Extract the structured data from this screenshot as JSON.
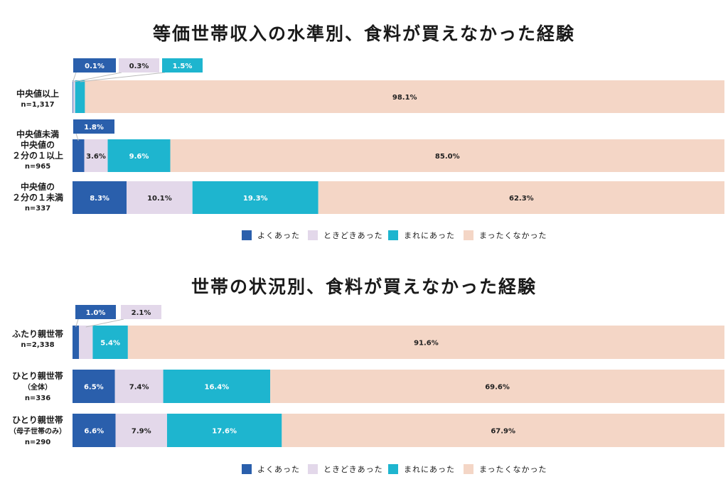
{
  "colors": {
    "often": "#2a5fac",
    "sometimes": "#e3d8ea",
    "rarely": "#1eb5cf",
    "never": "#f4d6c6"
  },
  "legend": [
    "よくあった",
    "ときどきあった",
    "まれにあった",
    "まったくなかった"
  ],
  "chart_data": [
    {
      "type": "bar",
      "orientation": "horizontal-stacked-100",
      "title": "等価世帯収入の水準別、食料が買えなかった経験",
      "series_names": [
        "よくあった",
        "ときどきあった",
        "まれにあった",
        "まったくなかった"
      ],
      "rows": [
        {
          "label": [
            "中央値以上"
          ],
          "n": "n=1,317",
          "values": [
            0.1,
            0.3,
            1.5,
            98.1
          ],
          "labels": [
            "0.1%",
            "0.3%",
            "1.5%",
            "98.1%"
          ]
        },
        {
          "label": [
            "中央値未満",
            "中央値の",
            "２分の１以上"
          ],
          "n": "n=965",
          "values": [
            1.8,
            3.6,
            9.6,
            85.0
          ],
          "labels": [
            "1.8%",
            "3.6%",
            "9.6%",
            "85.0%"
          ]
        },
        {
          "label": [
            "中央値の",
            "２分の１未満"
          ],
          "n": "n=337",
          "values": [
            8.3,
            10.1,
            19.3,
            62.3
          ],
          "labels": [
            "8.3%",
            "10.1%",
            "19.3%",
            "62.3%"
          ]
        }
      ]
    },
    {
      "type": "bar",
      "orientation": "horizontal-stacked-100",
      "title": "世帯の状況別、食料が買えなかった経験",
      "series_names": [
        "よくあった",
        "ときどきあった",
        "まれにあった",
        "まったくなかった"
      ],
      "rows": [
        {
          "label": [
            "ふたり親世帯"
          ],
          "n": "n=2,338",
          "values": [
            1.0,
            2.1,
            5.4,
            91.6
          ],
          "labels": [
            "1.0%",
            "2.1%",
            "5.4%",
            "91.6%"
          ]
        },
        {
          "label": [
            "ひとり親世帯",
            "（全体）"
          ],
          "n": "n=336",
          "values": [
            6.5,
            7.4,
            16.4,
            69.6
          ],
          "labels": [
            "6.5%",
            "7.4%",
            "16.4%",
            "69.6%"
          ]
        },
        {
          "label": [
            "ひとり親世帯",
            "（母子世帯のみ）"
          ],
          "n": "n=290",
          "values": [
            6.6,
            7.9,
            17.6,
            67.9
          ],
          "labels": [
            "6.6%",
            "7.9%",
            "17.6%",
            "67.9%"
          ]
        }
      ]
    }
  ]
}
